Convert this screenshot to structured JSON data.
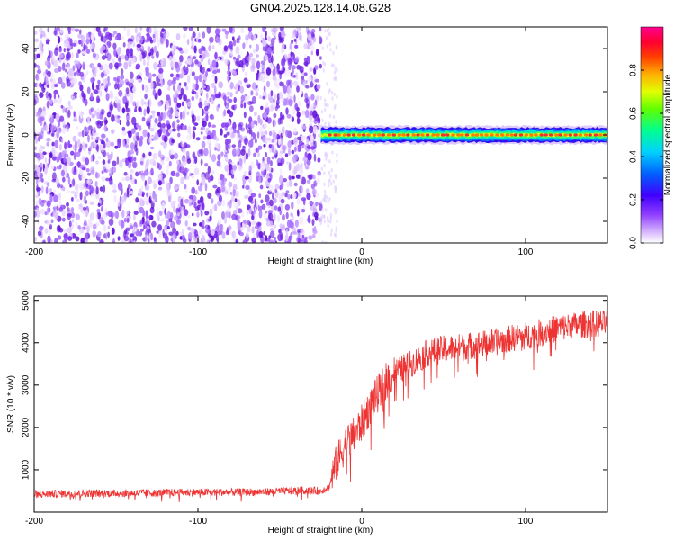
{
  "title": "GN04.2025.128.14.08.G28",
  "colors": {
    "spectral_purple": "#7a22e8",
    "ridge_red": "#ee3030",
    "snr_line": "#ee3333",
    "axis": "#000000"
  },
  "chart_data": [
    {
      "type": "heatmap",
      "title": "GN04.2025.128.14.08.G28",
      "xlabel": "Height of straight line (km)",
      "ylabel": "Frequency (Hz)",
      "xlim": [
        -200,
        150
      ],
      "ylim": [
        -50,
        50
      ],
      "x_ticks": [
        -200,
        -100,
        0,
        100
      ],
      "y_ticks": [
        -40,
        -20,
        0,
        20,
        40
      ],
      "grid": false,
      "description_of_data": {
        "noise_region_x": [
          -200,
          -25
        ],
        "signal_frequency_hz": 0,
        "signal_start_x": -25,
        "signal_band_halfwidth_hz": 2.5
      },
      "colorbar": {
        "label": "Normalized spectral amplitude",
        "range": [
          0.0,
          1.0
        ],
        "ticks": [
          0.0,
          0.2,
          0.4,
          0.6,
          0.8
        ],
        "colormap": [
          "#ffffff",
          "#d8b8ff",
          "#9040ff",
          "#4000ff",
          "#0060ff",
          "#00d0ff",
          "#00ff90",
          "#60ff00",
          "#e0ff00",
          "#ffb000",
          "#ff4000",
          "#ff0030",
          "#ff0090"
        ]
      }
    },
    {
      "type": "line",
      "xlabel": "Height of straight line (km)",
      "ylabel": "SNR (10 * v/v)",
      "xlim": [
        -200,
        150
      ],
      "ylim": [
        0,
        5100
      ],
      "x_ticks": [
        -200,
        -100,
        0,
        100
      ],
      "y_ticks": [
        1000,
        2000,
        3000,
        4000,
        5000
      ],
      "grid": false,
      "series": [
        {
          "x": [
            -200,
            -180,
            -160,
            -140,
            -120,
            -100,
            -80,
            -60,
            -45,
            -35,
            -25,
            -20,
            -15,
            -10,
            -5,
            0,
            5,
            10,
            15,
            20,
            25,
            30,
            40,
            50,
            60,
            70,
            80,
            90,
            100,
            110,
            120,
            130,
            140,
            150
          ],
          "y": [
            420,
            440,
            450,
            450,
            460,
            470,
            470,
            480,
            500,
            520,
            500,
            600,
            1200,
            1600,
            1800,
            2100,
            2500,
            2800,
            3100,
            3300,
            3400,
            3500,
            3750,
            3850,
            3900,
            3950,
            4000,
            4100,
            4150,
            4250,
            4350,
            4400,
            4450,
            4450
          ]
        }
      ]
    }
  ]
}
